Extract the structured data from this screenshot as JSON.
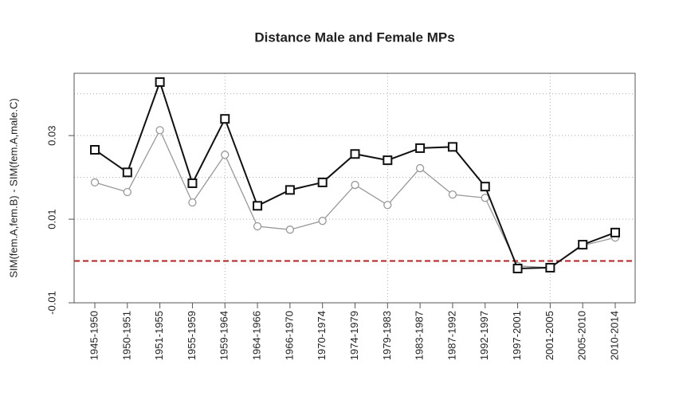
{
  "chart_data": {
    "type": "line",
    "title": "Distance Male and Female MPs",
    "y_label": "SIM(fem.A,fem.B) - SIM(fem.A,male.C)",
    "categories": [
      "1945-1950",
      "1950-1951",
      "1951-1955",
      "1955-1959",
      "1959-1964",
      "1964-1966",
      "1966-1970",
      "1970-1974",
      "1974-1979",
      "1979-1983",
      "1983-1987",
      "1987-1992",
      "1992-1997",
      "1997-2001",
      "2001-2005",
      "2005-2010",
      "2010-2014"
    ],
    "series": [
      {
        "color": "#111111",
        "marker": "square",
        "values": [
          0.0266,
          0.0212,
          0.0428,
          0.0186,
          0.034,
          0.0132,
          0.017,
          0.0188,
          0.0256,
          0.0241,
          0.027,
          0.0273,
          0.0178,
          -0.0018,
          -0.0016,
          0.0039,
          0.0068
        ]
      },
      {
        "color": "#999999",
        "marker": "circle",
        "values": [
          0.0188,
          0.0165,
          0.0313,
          0.014,
          0.0254,
          0.0083,
          0.0075,
          0.0096,
          0.0182,
          0.0134,
          0.0222,
          0.0159,
          0.0151,
          -0.0012,
          -0.0016,
          0.0037,
          0.0056
        ]
      }
    ],
    "ylim": [
      -0.01,
      0.0449
    ],
    "yticks": [
      -0.01,
      0.01,
      0.03
    ],
    "ygrid": [
      0.01,
      0.02,
      0.03,
      0.04
    ],
    "xgrid_categories": [
      4,
      9,
      14
    ],
    "reference_line": {
      "value": 0,
      "color": "#b22222"
    },
    "grid": true
  }
}
